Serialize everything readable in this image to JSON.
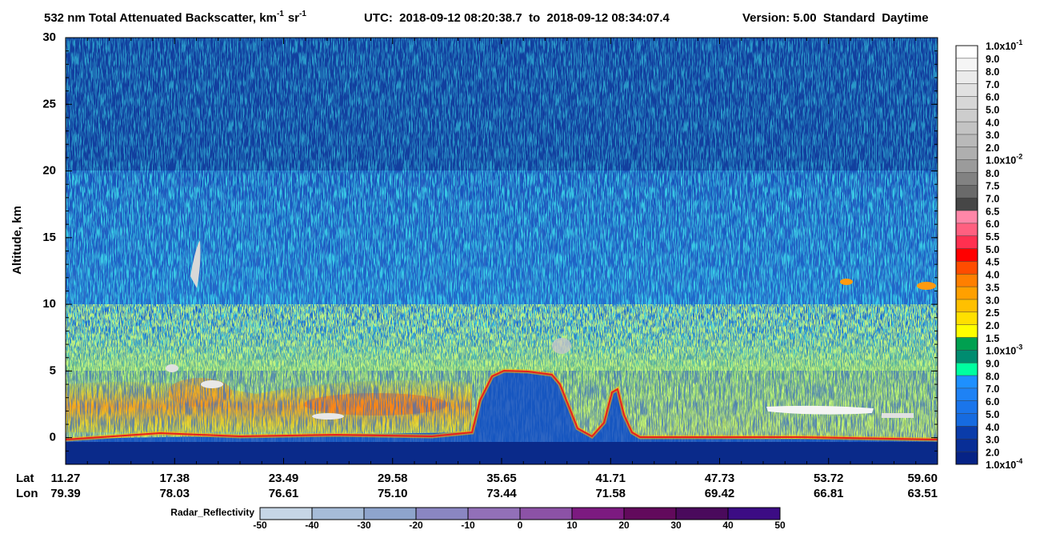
{
  "title": {
    "main": "532 nm Total Attenuated Backscatter, km",
    "exp1": "-1",
    "unit2": "sr",
    "exp2": "-1",
    "utc": "UTC:  2018-09-12 08:20:38.7  to  2018-09-12 08:34:07.4",
    "version": "Version: 5.00  Standard  Daytime"
  },
  "chart_data": {
    "type": "heatmap",
    "y_label": "Altitude, km",
    "ylim": [
      -2,
      30
    ],
    "yticks": [
      0,
      5,
      10,
      15,
      20,
      25,
      30
    ],
    "x_rows": [
      {
        "name": "Lat",
        "labels": [
          "11.27",
          "17.38",
          "23.49",
          "29.58",
          "35.65",
          "41.71",
          "47.73",
          "53.72",
          "59.60"
        ]
      },
      {
        "name": "Lon",
        "labels": [
          "79.39",
          "78.03",
          "76.61",
          "75.10",
          "73.44",
          "71.58",
          "69.42",
          "66.81",
          "63.51"
        ]
      }
    ],
    "colorbar": {
      "labels": [
        {
          "text": "1.0x10",
          "exp": "-1"
        },
        "9.0",
        "8.0",
        "7.0",
        "6.0",
        "5.0",
        "4.0",
        "3.0",
        "2.0",
        {
          "text": "1.0x10",
          "exp": "-2"
        },
        "8.0",
        "7.5",
        "7.0",
        "6.5",
        "6.0",
        "5.5",
        "5.0",
        "4.5",
        "4.0",
        "3.5",
        "3.0",
        "2.5",
        "2.0",
        "1.5",
        {
          "text": "1.0x10",
          "exp": "-3"
        },
        "9.0",
        "8.0",
        "7.0",
        "6.0",
        "5.0",
        "4.0",
        "3.0",
        "2.0",
        {
          "text": "1.0x10",
          "exp": "-4"
        }
      ],
      "colors": [
        "#ffffff",
        "#f5f5f5",
        "#ebebeb",
        "#e1e1e1",
        "#d7d7d7",
        "#cdcdcd",
        "#c3c3c3",
        "#b9b9b9",
        "#afafaf",
        "#9b9b9b",
        "#828282",
        "#6a6a6a",
        "#464646",
        "#ff87a8",
        "#ff6080",
        "#ff3050",
        "#ff0000",
        "#ff4c00",
        "#ff7f00",
        "#ffa000",
        "#ffc000",
        "#ffe000",
        "#ffff00",
        "#00a050",
        "#008c70",
        "#00ffa0",
        "#1e90ff",
        "#1e82f5",
        "#1a75eb",
        "#166be0",
        "#0a3caa",
        "#082e96",
        "#062386"
      ]
    },
    "radar": {
      "title": "Radar_Reflectivity",
      "ticks": [
        -50,
        -40,
        -30,
        -20,
        -10,
        0,
        10,
        20,
        30,
        40,
        50
      ],
      "colors": [
        "#c6d6e6",
        "#a6bcd8",
        "#8ea4cc",
        "#8a86c2",
        "#9270b8",
        "#8c52a6",
        "#7c1a80",
        "#620a5c",
        "#4a0a5c",
        "#3c0c84"
      ]
    }
  }
}
